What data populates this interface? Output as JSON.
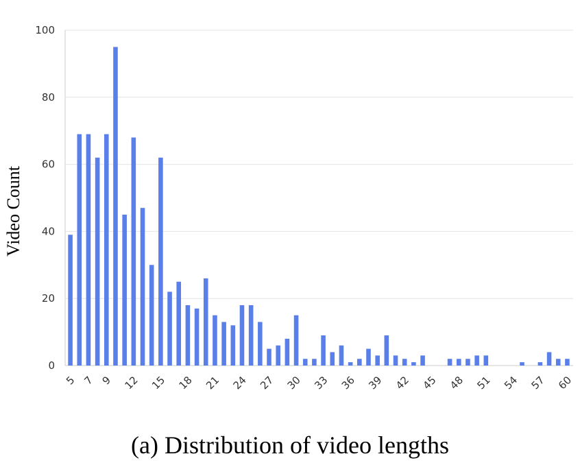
{
  "chart_data": {
    "type": "bar",
    "ylabel": "Video Count",
    "xlabel": "",
    "caption": "(a) Distribution of video lengths",
    "bar_color": "#5b7fe8",
    "grid": true,
    "ylim": [
      0,
      100
    ],
    "y_ticks": [
      "0",
      "20",
      "40",
      "60",
      "80",
      "100"
    ],
    "x_tick_labels": [
      "5",
      "7",
      "9",
      "12",
      "15",
      "18",
      "21",
      "24",
      "27",
      "30",
      "33",
      "36",
      "39",
      "42",
      "45",
      "48",
      "51",
      "54",
      "57",
      "60"
    ],
    "categories": [
      5,
      6,
      7,
      8,
      9,
      10,
      11,
      12,
      13,
      14,
      15,
      16,
      17,
      18,
      19,
      20,
      21,
      22,
      23,
      24,
      25,
      26,
      27,
      28,
      29,
      30,
      31,
      32,
      33,
      34,
      35,
      36,
      37,
      38,
      39,
      40,
      41,
      42,
      43,
      44,
      45,
      46,
      47,
      48,
      49,
      50,
      51,
      52,
      53,
      54,
      55,
      56,
      57,
      58,
      59,
      60
    ],
    "values": [
      39,
      69,
      69,
      62,
      69,
      95,
      45,
      68,
      47,
      30,
      62,
      22,
      25,
      18,
      17,
      26,
      15,
      13,
      12,
      18,
      18,
      13,
      5,
      6,
      8,
      15,
      2,
      2,
      9,
      4,
      6,
      1,
      2,
      5,
      3,
      9,
      3,
      2,
      1,
      3,
      0,
      0,
      2,
      2,
      2,
      3,
      3,
      0,
      0,
      0,
      1,
      0,
      1,
      4,
      2,
      2
    ]
  }
}
